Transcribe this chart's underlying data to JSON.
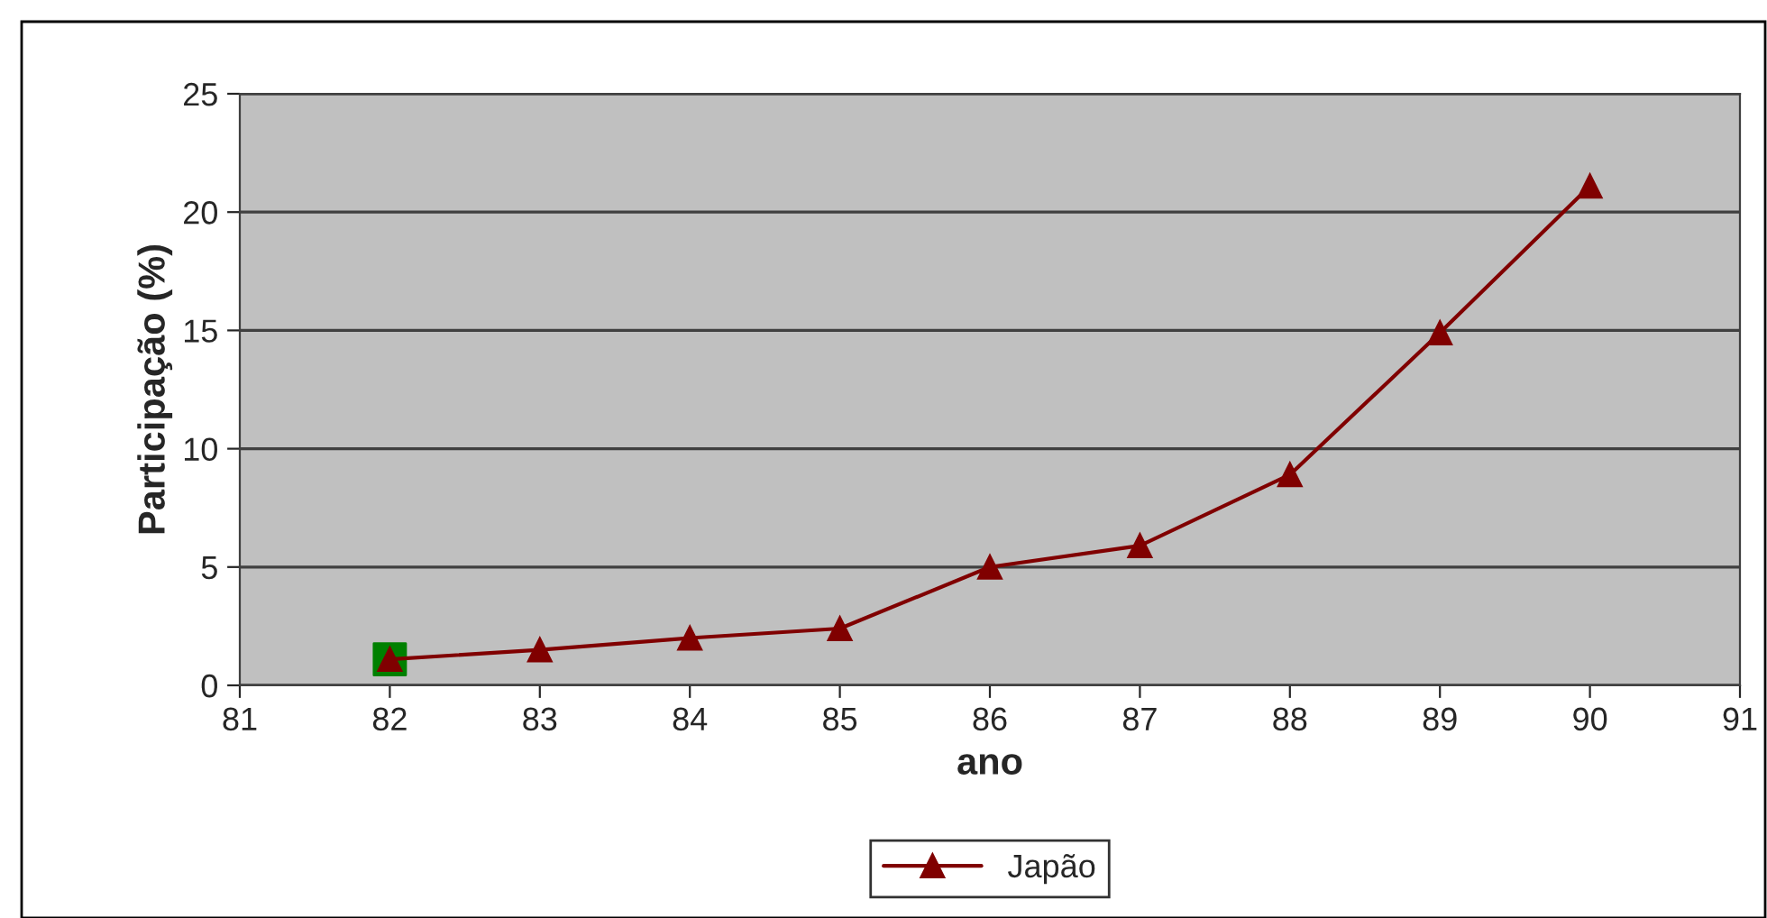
{
  "chart_data": {
    "type": "line",
    "xlabel": "ano",
    "ylabel": "Participação (%)",
    "x": [
      82,
      83,
      84,
      85,
      86,
      87,
      88,
      89,
      90
    ],
    "series": [
      {
        "name": "Japão",
        "color": "#800000",
        "marker": "triangle",
        "values": [
          1.1,
          1.5,
          2.0,
          2.4,
          5.0,
          5.9,
          8.9,
          14.9,
          21.1
        ]
      },
      {
        "type": "scatter",
        "color": "#008000",
        "marker": "square",
        "x": [
          82
        ],
        "values": [
          1.1
        ]
      }
    ],
    "xlim": [
      81,
      91
    ],
    "xticks": [
      81,
      82,
      83,
      84,
      85,
      86,
      87,
      88,
      89,
      90,
      91
    ],
    "ylim": [
      0,
      25
    ],
    "yticks": [
      0,
      5,
      10,
      15,
      20,
      25
    ],
    "grid": "y",
    "legend": "bottom",
    "line_style": "solid"
  }
}
